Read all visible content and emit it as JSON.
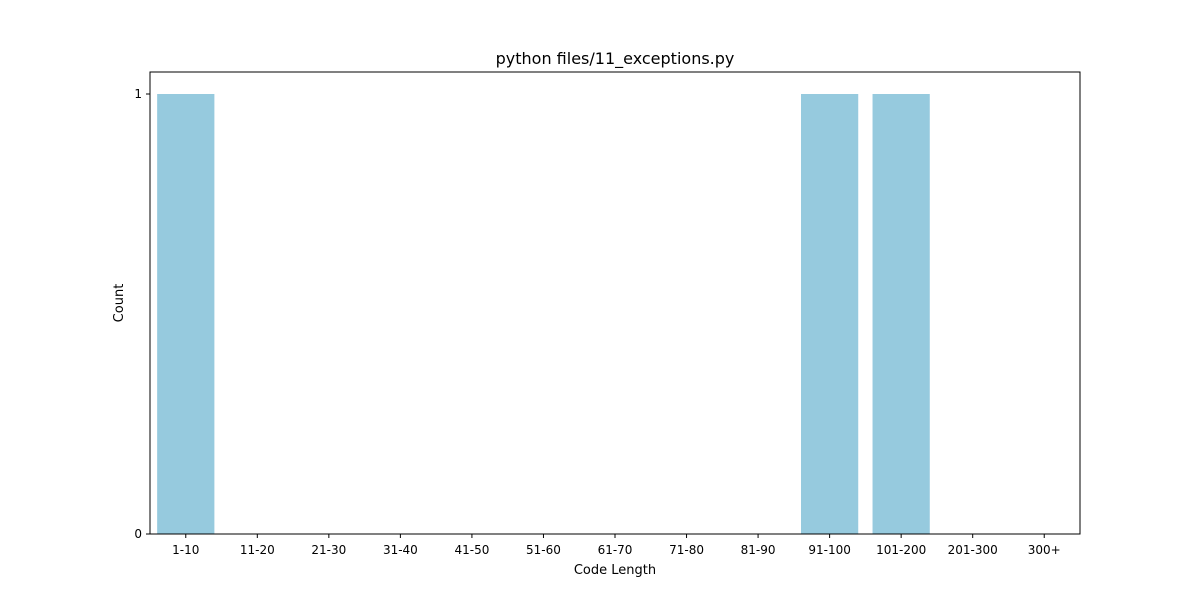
{
  "chart_data": {
    "type": "bar",
    "title": "python files/11_exceptions.py",
    "xlabel": "Code Length",
    "ylabel": "Count",
    "categories": [
      "1-10",
      "11-20",
      "21-30",
      "31-40",
      "41-50",
      "51-60",
      "61-70",
      "71-80",
      "81-90",
      "91-100",
      "101-200",
      "201-300",
      "300+"
    ],
    "values": [
      1,
      0,
      0,
      0,
      0,
      0,
      0,
      0,
      0,
      1,
      1,
      0,
      0
    ],
    "ylim": [
      0,
      1.05
    ],
    "yticks": [
      0,
      1
    ],
    "bar_color": "#96cade",
    "grid": false,
    "legend": "none"
  }
}
